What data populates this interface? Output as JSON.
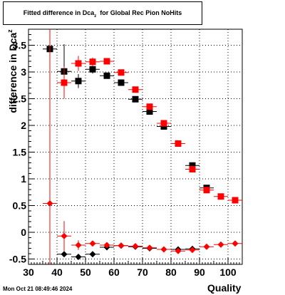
{
  "title": {
    "main": "Fitted difference in Dca",
    "sub": "z",
    "rest": "for Global Rec Pion NoHits"
  },
  "footer": {
    "timestamp": "Mon Oct 21 08:49:46 2024"
  },
  "chart_data": {
    "type": "scatter",
    "xlabel": "Quality",
    "ylabel_main": "difference in Dca",
    "ylabel_sub": "z",
    "xlim": [
      30,
      105
    ],
    "ylim": [
      -0.6,
      3.8
    ],
    "xticks": [
      30,
      40,
      50,
      60,
      70,
      80,
      90,
      100
    ],
    "yticks": [
      -0.5,
      0,
      0.5,
      1,
      1.5,
      2,
      2.5,
      3,
      3.5
    ],
    "ytick_labels": [
      "-0.5",
      "0",
      "0.5",
      "1",
      "1.5",
      "2",
      "2.5",
      "3",
      "3.5"
    ],
    "grid": true,
    "series": [
      {
        "marker": "square",
        "color": "#000000",
        "points": [
          {
            "x": 37.5,
            "y": 3.43,
            "ylo": 3.38,
            "yhi": 3.48
          },
          {
            "x": 42.5,
            "y": 3.01,
            "ylo": 2.5,
            "yhi": 3.52
          },
          {
            "x": 47.5,
            "y": 2.83,
            "ylo": 2.7,
            "yhi": 2.96
          },
          {
            "x": 52.5,
            "y": 3.05,
            "ylo": 2.97,
            "yhi": 3.13
          },
          {
            "x": 57.5,
            "y": 2.93,
            "ylo": 2.88,
            "yhi": 2.98
          },
          {
            "x": 62.5,
            "y": 2.8,
            "ylo": 2.76,
            "yhi": 2.84
          },
          {
            "x": 67.5,
            "y": 2.49,
            "ylo": 2.46,
            "yhi": 2.52
          },
          {
            "x": 72.5,
            "y": 2.26,
            "ylo": 2.23,
            "yhi": 2.29
          },
          {
            "x": 77.5,
            "y": 1.98,
            "ylo": 1.95,
            "yhi": 2.01
          },
          {
            "x": 82.5,
            "y": 1.66,
            "ylo": 1.63,
            "yhi": 1.69
          },
          {
            "x": 87.5,
            "y": 1.25,
            "ylo": 1.22,
            "yhi": 1.28
          },
          {
            "x": 92.5,
            "y": 0.83,
            "ylo": 0.8,
            "yhi": 0.86
          }
        ]
      },
      {
        "marker": "square",
        "color": "#ff0000",
        "points": [
          {
            "x": 42.5,
            "y": 2.8,
            "ylo": 2.5,
            "yhi": 3.1
          },
          {
            "x": 47.5,
            "y": 3.16,
            "ylo": 3.02,
            "yhi": 3.3
          },
          {
            "x": 52.5,
            "y": 3.19,
            "ylo": 3.11,
            "yhi": 3.27
          },
          {
            "x": 57.5,
            "y": 3.2,
            "ylo": 3.15,
            "yhi": 3.25
          },
          {
            "x": 62.5,
            "y": 2.99,
            "ylo": 2.95,
            "yhi": 3.03
          },
          {
            "x": 67.5,
            "y": 2.67,
            "ylo": 2.64,
            "yhi": 2.7
          },
          {
            "x": 72.5,
            "y": 2.35,
            "ylo": 2.32,
            "yhi": 2.38
          },
          {
            "x": 77.5,
            "y": 2.04,
            "ylo": 2.01,
            "yhi": 2.07
          },
          {
            "x": 82.5,
            "y": 1.66,
            "ylo": 1.63,
            "yhi": 1.69
          },
          {
            "x": 87.5,
            "y": 1.18,
            "ylo": 1.15,
            "yhi": 1.21
          },
          {
            "x": 92.5,
            "y": 0.79,
            "ylo": 0.76,
            "yhi": 0.82
          },
          {
            "x": 97.5,
            "y": 0.67,
            "ylo": 0.64,
            "yhi": 0.7
          },
          {
            "x": 102.5,
            "y": 0.6,
            "ylo": 0.57,
            "yhi": 0.63
          }
        ]
      },
      {
        "marker": "diamond",
        "color": "#000000",
        "points": [
          {
            "x": 42.5,
            "y": -0.41,
            "ylo": -0.43,
            "yhi": -0.39
          },
          {
            "x": 47.5,
            "y": -0.46,
            "ylo": -0.48,
            "yhi": -0.44
          },
          {
            "x": 52.5,
            "y": -0.41,
            "ylo": -0.43,
            "yhi": -0.39
          },
          {
            "x": 57.5,
            "y": -0.28,
            "ylo": -0.3,
            "yhi": -0.26
          },
          {
            "x": 62.5,
            "y": -0.25,
            "ylo": -0.27,
            "yhi": -0.23
          },
          {
            "x": 67.5,
            "y": -0.27,
            "ylo": -0.29,
            "yhi": -0.25
          },
          {
            "x": 72.5,
            "y": -0.3,
            "ylo": -0.32,
            "yhi": -0.28
          },
          {
            "x": 82.5,
            "y": -0.32,
            "ylo": -0.34,
            "yhi": -0.3
          },
          {
            "x": 87.5,
            "y": -0.31,
            "ylo": -0.33,
            "yhi": -0.29
          }
        ]
      },
      {
        "marker": "diamond",
        "color": "#ff0000",
        "points": [
          {
            "x": 37.5,
            "y": 0.54,
            "ylo": -0.6,
            "yhi": 3.8
          },
          {
            "x": 42.5,
            "y": -0.07,
            "ylo": -0.35,
            "yhi": 0.21
          },
          {
            "x": 47.5,
            "y": -0.24,
            "ylo": -0.33,
            "yhi": -0.15
          },
          {
            "x": 52.5,
            "y": -0.21,
            "ylo": -0.26,
            "yhi": -0.16
          },
          {
            "x": 57.5,
            "y": -0.24,
            "ylo": -0.27,
            "yhi": -0.21
          },
          {
            "x": 62.5,
            "y": -0.25,
            "ylo": -0.27,
            "yhi": -0.23
          },
          {
            "x": 67.5,
            "y": -0.26,
            "ylo": -0.28,
            "yhi": -0.24
          },
          {
            "x": 72.5,
            "y": -0.29,
            "ylo": -0.31,
            "yhi": -0.27
          },
          {
            "x": 77.5,
            "y": -0.32,
            "ylo": -0.34,
            "yhi": -0.3
          },
          {
            "x": 82.5,
            "y": -0.35,
            "ylo": -0.37,
            "yhi": -0.33
          },
          {
            "x": 87.5,
            "y": -0.33,
            "ylo": -0.35,
            "yhi": -0.31
          },
          {
            "x": 92.5,
            "y": -0.27,
            "ylo": -0.29,
            "yhi": -0.25
          },
          {
            "x": 97.5,
            "y": -0.23,
            "ylo": -0.25,
            "yhi": -0.21
          },
          {
            "x": 102.5,
            "y": -0.21,
            "ylo": -0.23,
            "yhi": -0.19
          }
        ]
      }
    ]
  }
}
